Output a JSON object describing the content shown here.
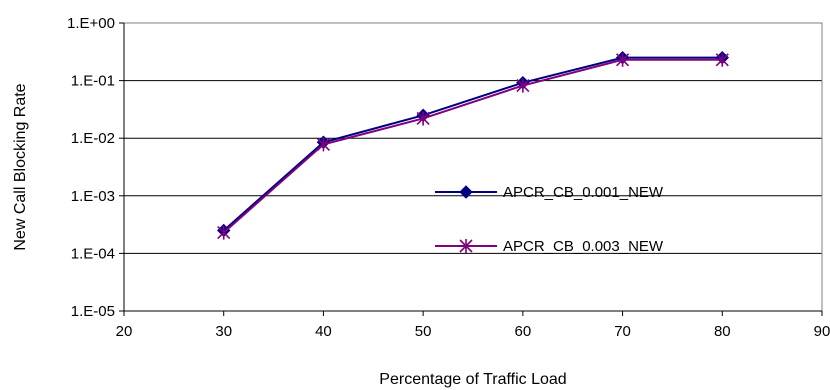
{
  "chart_data": {
    "type": "line",
    "title": "",
    "xlabel": "Percentage of Traffic Load",
    "ylabel": "New Call Blocking Rate",
    "xlim": [
      20,
      90
    ],
    "x_ticks": [
      20,
      30,
      40,
      50,
      60,
      70,
      80,
      90
    ],
    "x_tick_labels": [
      "20",
      "30",
      "40",
      "50",
      "60",
      "70",
      "80",
      "90"
    ],
    "yscale": "log",
    "ylim": [
      1e-05,
      1
    ],
    "y_ticks": [
      1,
      0.1,
      0.01,
      0.001,
      0.0001,
      1e-05
    ],
    "y_tick_labels": [
      "1.E+00",
      "1.E-01",
      "1.E-02",
      "1.E-03",
      "1.E-04",
      "1.E-05"
    ],
    "grid": "horizontal",
    "legend_position": "center-right",
    "series": [
      {
        "name": "APCR_CB_0.001_NEW",
        "color": "#000080",
        "marker": "diamond",
        "x": [
          30,
          40,
          50,
          60,
          70,
          80
        ],
        "y": [
          0.00025,
          0.0085,
          0.025,
          0.092,
          0.25,
          0.25
        ]
      },
      {
        "name": "APCR_CB_0.003_NEW",
        "color": "#800080",
        "marker": "star",
        "x": [
          30,
          40,
          50,
          60,
          70,
          80
        ],
        "y": [
          0.00023,
          0.0078,
          0.022,
          0.082,
          0.23,
          0.23
        ]
      }
    ]
  }
}
